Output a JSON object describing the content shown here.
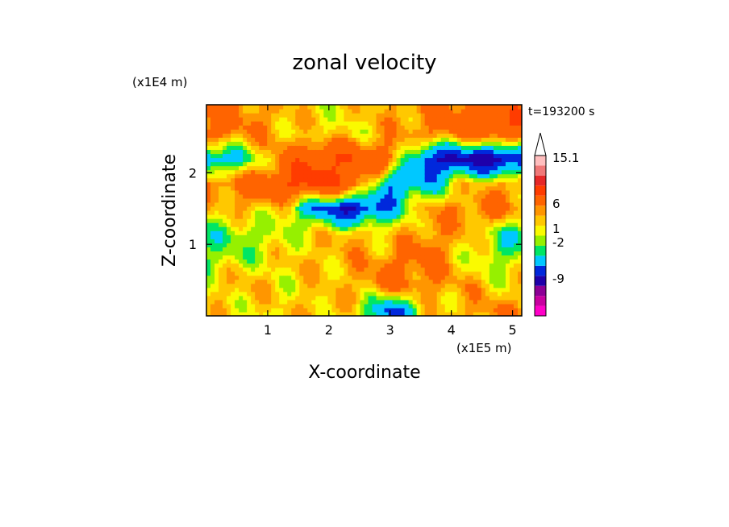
{
  "chart_data": {
    "type": "heatmap",
    "title": "zonal velocity",
    "xlabel": "X-coordinate",
    "ylabel": "Z-coordinate",
    "x_unit_label": "(x1E5 m)",
    "y_unit_label": "(x1E4 m)",
    "time_label": "t=193200 s",
    "xlim": [
      0,
      5.15
    ],
    "ylim": [
      0,
      2.95
    ],
    "x_ticks": [
      "1",
      "2",
      "3",
      "4",
      "5"
    ],
    "y_ticks": [
      "1",
      "2"
    ],
    "colorbar": {
      "tick_labels": [
        "15.1",
        "6",
        "1",
        "-2",
        "-9"
      ],
      "colors": [
        "#ff00c8",
        "#c800a0",
        "#8c0096",
        "#1e00aa",
        "#0028dc",
        "#00c8ff",
        "#00e664",
        "#96f000",
        "#fafa00",
        "#ffc800",
        "#ff9600",
        "#ff6400",
        "#ff3c00",
        "#e62828",
        "#f07878",
        "#ffbebe"
      ]
    },
    "bands": [
      {
        "z": 2.55,
        "x": [
          0.0,
          0.6,
          1.2,
          1.8,
          2.4,
          3.0,
          3.6,
          4.2,
          4.8,
          5.15
        ],
        "u": [
          4,
          3,
          2,
          1,
          1,
          2,
          3,
          4,
          5,
          5
        ]
      },
      {
        "z": 2.2,
        "x": [
          0.0,
          0.6,
          1.2,
          1.8,
          2.4,
          3.0,
          3.6,
          4.2,
          4.8,
          5.15
        ],
        "u": [
          -5,
          -2,
          3,
          6,
          6,
          4,
          -6,
          -7,
          -8,
          -6
        ]
      },
      {
        "z": 1.85,
        "x": [
          0.0,
          0.6,
          1.2,
          1.8,
          2.4,
          3.0,
          3.6,
          4.2,
          4.8,
          5.15
        ],
        "u": [
          3,
          4,
          6,
          7,
          5,
          -4,
          -3,
          1,
          2,
          3
        ]
      },
      {
        "z": 1.5,
        "x": [
          0.0,
          0.6,
          1.2,
          1.8,
          2.4,
          3.0,
          3.6,
          4.2,
          4.8,
          5.15
        ],
        "u": [
          1,
          2,
          1,
          -4,
          -7,
          -3,
          2,
          3,
          4,
          2
        ]
      },
      {
        "z": 1.15,
        "x": [
          0.0,
          0.6,
          1.2,
          1.8,
          2.4,
          3.0,
          3.6,
          4.2,
          4.8,
          5.15
        ],
        "u": [
          -1,
          -1,
          0,
          1,
          2,
          1,
          3,
          2,
          -1,
          -2
        ]
      },
      {
        "z": 0.8,
        "x": [
          0.0,
          0.6,
          1.2,
          1.8,
          2.4,
          3.0,
          3.6,
          4.2,
          4.8,
          5.15
        ],
        "u": [
          -1,
          0,
          1,
          2,
          2,
          3,
          4,
          1,
          -1,
          0
        ]
      },
      {
        "z": 0.45,
        "x": [
          0.0,
          0.6,
          1.2,
          1.8,
          2.4,
          3.0,
          3.6,
          4.2,
          4.8,
          5.15
        ],
        "u": [
          1,
          2,
          1,
          1,
          2,
          4,
          3,
          2,
          1,
          1
        ]
      },
      {
        "z": 0.1,
        "x": [
          0.0,
          0.6,
          1.2,
          1.8,
          2.4,
          3.0,
          3.6,
          4.2,
          4.8,
          5.15
        ],
        "u": [
          1,
          1,
          1,
          2,
          1,
          -5,
          1,
          2,
          3,
          2
        ]
      }
    ]
  }
}
